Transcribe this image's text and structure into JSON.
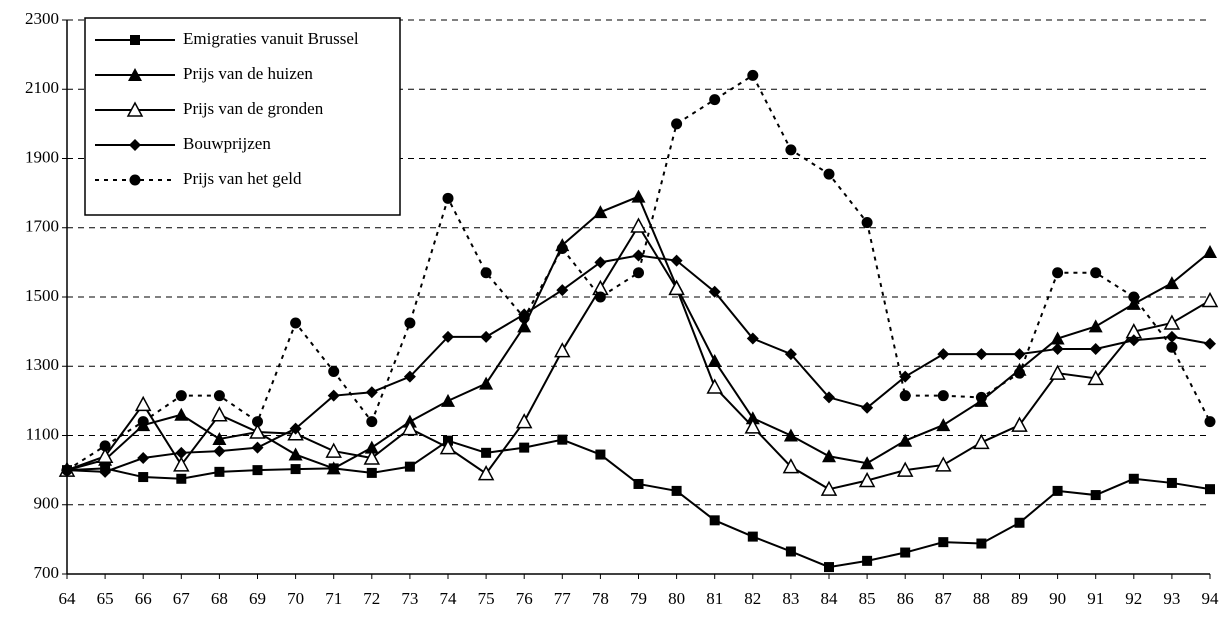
{
  "chart_data": {
    "type": "line",
    "categories": [
      "64",
      "65",
      "66",
      "67",
      "68",
      "69",
      "70",
      "71",
      "72",
      "73",
      "74",
      "75",
      "76",
      "77",
      "78",
      "79",
      "80",
      "81",
      "82",
      "83",
      "84",
      "85",
      "86",
      "87",
      "88",
      "89",
      "90",
      "91",
      "92",
      "93",
      "94"
    ],
    "series": [
      {
        "name": "Emigraties vanuit Brussel",
        "color": "#000000",
        "marker": "square",
        "dash": "solid",
        "values": [
          1000,
          1005,
          980,
          975,
          995,
          1000,
          1003,
          1005,
          992,
          1010,
          1085,
          1050,
          1065,
          1088,
          1045,
          960,
          940,
          855,
          808,
          765,
          720,
          738,
          762,
          792,
          788,
          848,
          940,
          928,
          975,
          963,
          945
        ]
      },
      {
        "name": "Prijs van de huizen",
        "color": "#000000",
        "marker": "triangle",
        "dash": "solid",
        "values": [
          1000,
          1030,
          1130,
          1160,
          1090,
          1110,
          1045,
          1005,
          1065,
          1140,
          1200,
          1250,
          1415,
          1650,
          1745,
          1790,
          1530,
          1315,
          1150,
          1100,
          1040,
          1020,
          1085,
          1130,
          1200,
          1290,
          1380,
          1415,
          1480,
          1540,
          1630
        ]
      },
      {
        "name": "Prijs van de gronden",
        "color": "#000000",
        "marker": "open-triangle",
        "dash": "solid",
        "values": [
          1000,
          1040,
          1190,
          1015,
          1160,
          1110,
          1105,
          1055,
          1035,
          1120,
          1065,
          990,
          1140,
          1345,
          1525,
          1705,
          1525,
          1240,
          1125,
          1010,
          945,
          970,
          1000,
          1015,
          1080,
          1130,
          1280,
          1265,
          1400,
          1425,
          1490
        ]
      },
      {
        "name": "Bouwprijzen",
        "color": "#000000",
        "marker": "diamond",
        "dash": "solid",
        "values": [
          1000,
          995,
          1035,
          1050,
          1055,
          1065,
          1120,
          1215,
          1225,
          1270,
          1385,
          1385,
          1450,
          1520,
          1600,
          1620,
          1605,
          1515,
          1380,
          1335,
          1210,
          1180,
          1270,
          1335,
          1335,
          1335,
          1350,
          1350,
          1375,
          1385,
          1365
        ]
      },
      {
        "name": "Prijs van het geld",
        "color": "#000000",
        "marker": "circle",
        "dash": "dotted",
        "values": [
          1000,
          1070,
          1140,
          1215,
          1215,
          1140,
          1425,
          1285,
          1140,
          1425,
          1785,
          1570,
          1440,
          1640,
          1500,
          1570,
          2000,
          2070,
          2140,
          1925,
          1855,
          1715,
          1215,
          1215,
          1210,
          1280,
          1570,
          1570,
          1500,
          1355,
          1140
        ]
      }
    ],
    "ylim": [
      700,
      2300
    ],
    "yticks": [
      700,
      900,
      1100,
      1300,
      1500,
      1700,
      1900,
      2100,
      2300
    ],
    "grid": true,
    "legend": "top-left"
  }
}
